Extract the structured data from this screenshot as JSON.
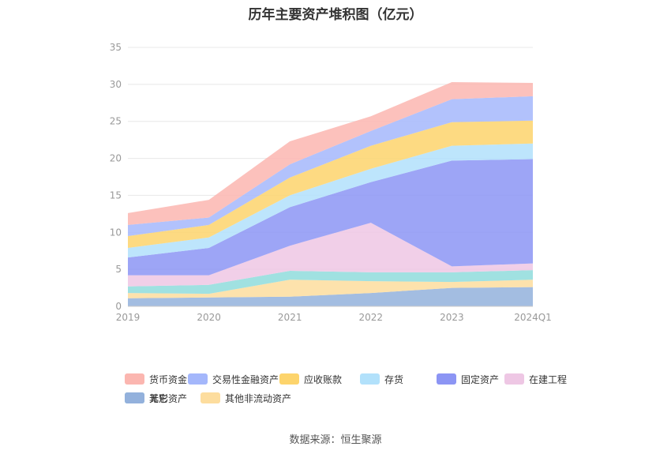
{
  "chart_data": {
    "type": "area",
    "title": "历年主要资产堆积图（亿元）",
    "source": "数据来源：恒生聚源",
    "categories": [
      "2019",
      "2020",
      "2021",
      "2022",
      "2023",
      "2024Q1"
    ],
    "ylim": [
      0,
      35
    ],
    "yticks": [
      "0",
      "5",
      "10",
      "15",
      "20",
      "25",
      "30",
      "35"
    ],
    "grid": true,
    "legend_position": "bottom",
    "stacked": true,
    "series": [
      {
        "name": "其它",
        "color": "#93b1dc",
        "values": [
          1.1,
          1.2,
          1.3,
          1.8,
          2.5,
          2.6
        ]
      },
      {
        "name": "其他非流动资产",
        "color": "#fddd9e",
        "values": [
          0.7,
          0.5,
          2.3,
          1.6,
          0.8,
          1.0
        ]
      },
      {
        "name": "无形资产",
        "color": "#8fdcdc",
        "values": [
          0.9,
          1.2,
          1.2,
          1.2,
          1.3,
          1.3
        ]
      },
      {
        "name": "在建工程",
        "color": "#eec7e4",
        "values": [
          1.5,
          1.3,
          3.4,
          6.7,
          0.8,
          0.9
        ]
      },
      {
        "name": "固定资产",
        "color": "#8c95f4",
        "values": [
          2.4,
          3.7,
          5.2,
          5.5,
          14.3,
          14.1
        ]
      },
      {
        "name": "存货",
        "color": "#b2e1fb",
        "values": [
          1.3,
          1.4,
          1.6,
          1.8,
          2.0,
          2.1
        ]
      },
      {
        "name": "应收账款",
        "color": "#fdd46c",
        "values": [
          1.6,
          1.7,
          2.4,
          3.1,
          3.2,
          3.1
        ]
      },
      {
        "name": "交易性金融资产",
        "color": "#a4b7fb",
        "values": [
          1.5,
          1.0,
          1.8,
          2.0,
          3.1,
          3.3
        ]
      },
      {
        "name": "货币资金",
        "color": "#fbb6b0",
        "values": [
          1.6,
          2.4,
          3.1,
          2.0,
          2.3,
          1.8
        ]
      }
    ],
    "legend_order": [
      "货币资金",
      "交易性金融资产",
      "应收账款",
      "存货",
      "固定资产",
      "在建工程",
      "无形资产",
      "其他非流动资产",
      "其它"
    ]
  }
}
